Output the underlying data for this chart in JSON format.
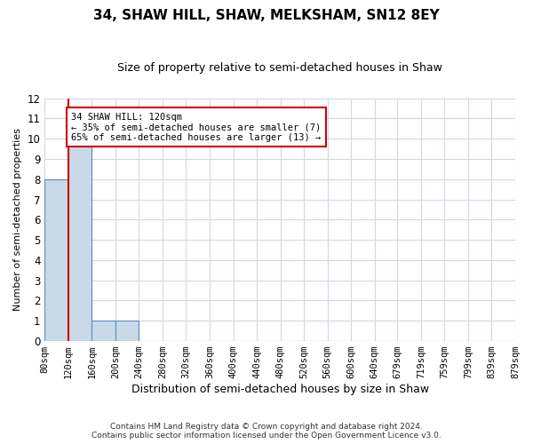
{
  "title": "34, SHAW HILL, SHAW, MELKSHAM, SN12 8EY",
  "subtitle": "Size of property relative to semi-detached houses in Shaw",
  "xlabel": "Distribution of semi-detached houses by size in Shaw",
  "ylabel": "Number of semi-detached properties",
  "bin_edges": [
    80,
    120,
    160,
    200,
    240,
    280,
    320,
    360,
    400,
    440,
    480,
    520,
    560,
    600,
    640,
    679,
    719,
    759,
    799,
    839,
    879
  ],
  "bin_labels": [
    "80sqm",
    "120sqm",
    "160sqm",
    "200sqm",
    "240sqm",
    "280sqm",
    "320sqm",
    "360sqm",
    "400sqm",
    "440sqm",
    "480sqm",
    "520sqm",
    "560sqm",
    "600sqm",
    "640sqm",
    "679sqm",
    "719sqm",
    "759sqm",
    "799sqm",
    "839sqm",
    "879sqm"
  ],
  "counts": [
    8,
    10,
    1,
    1,
    0,
    0,
    0,
    0,
    0,
    0,
    0,
    0,
    0,
    0,
    0,
    0,
    0,
    0,
    0,
    0
  ],
  "bar_color": "#c9d9e8",
  "bar_edge_color": "#5f8db5",
  "property_line_x": 120,
  "property_line_color": "#cc0000",
  "ylim": [
    0,
    12
  ],
  "yticks": [
    0,
    1,
    2,
    3,
    4,
    5,
    6,
    7,
    8,
    9,
    10,
    11,
    12
  ],
  "annotation_box_text": "34 SHAW HILL: 120sqm\n← 35% of semi-detached houses are smaller (7)\n65% of semi-detached houses are larger (13) →",
  "annotation_box_color": "#cc0000",
  "grid_color": "#d0d8e4",
  "footer_line1": "Contains HM Land Registry data © Crown copyright and database right 2024.",
  "footer_line2": "Contains public sector information licensed under the Open Government Licence v3.0."
}
